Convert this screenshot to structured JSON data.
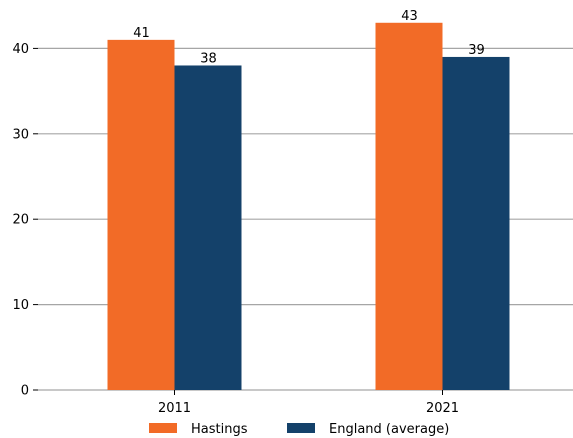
{
  "chart_data": {
    "type": "bar",
    "categories": [
      "2011",
      "2021"
    ],
    "series": [
      {
        "name": "Hastings",
        "values": [
          41,
          43
        ],
        "color": "#f26b27"
      },
      {
        "name": "England (average)",
        "values": [
          38,
          39
        ],
        "color": "#14416a"
      }
    ],
    "ylim": [
      0,
      43
    ],
    "yticks": [
      0,
      10,
      20,
      30,
      40
    ],
    "grid": true,
    "legend_position": "bottom"
  }
}
